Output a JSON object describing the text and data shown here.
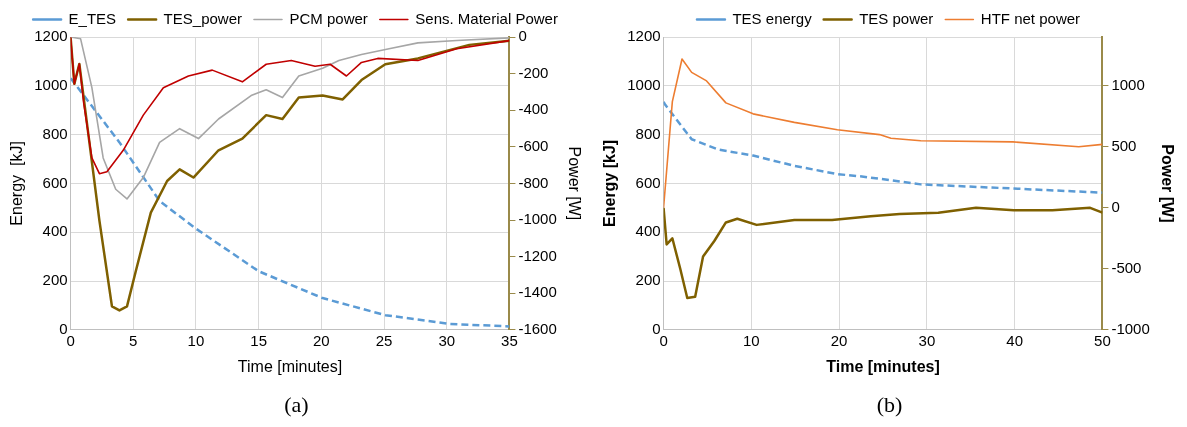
{
  "chart_data": [
    {
      "type": "line",
      "xlabel": "Time [minutes]",
      "ylabel": "Energy  [kJ]",
      "y2label": "Power [W]",
      "xlim": [
        0,
        35
      ],
      "xticks": [
        0,
        5,
        10,
        15,
        20,
        25,
        30,
        35
      ],
      "ylim": [
        0,
        1200
      ],
      "yticks": [
        0,
        200,
        400,
        600,
        800,
        1000,
        1200
      ],
      "y2lim": [
        -1600,
        0
      ],
      "y2ticks": [
        -1600,
        -1400,
        -1200,
        -1000,
        -800,
        -600,
        -400,
        -200,
        0
      ],
      "grid": true,
      "legend": "top",
      "marker": "none",
      "annotations": [
        "(a)"
      ],
      "series": [
        {
          "name": "E_TES",
          "color": "#5b9bd5",
          "line_style": "dashed",
          "x": [
            0,
            0.1,
            3.9,
            7.1,
            9.9,
            15,
            20.1,
            25.1,
            30.2,
            35
          ],
          "values": [
            1030,
            1025,
            768,
            528,
            418,
            240,
            130,
            60,
            24,
            14
          ]
        },
        {
          "name": "TES_power",
          "color": "#7f6000",
          "axis": "y2",
          "x": [
            0,
            0.3,
            0.7,
            2.3,
            3.3,
            3.9,
            4.5,
            5.2,
            6.4,
            7.7,
            8.7,
            9.8,
            11.8,
            13.7,
            15.6,
            16.9,
            18.2,
            20.1,
            21.7,
            23.2,
            25.1,
            27.7,
            31.8,
            35
          ],
          "values": [
            0,
            -256,
            -147,
            -1003,
            -1472,
            -1494,
            -1472,
            -1280,
            -960,
            -787,
            -723,
            -768,
            -619,
            -555,
            -427,
            -448,
            -331,
            -320,
            -341,
            -235,
            -149,
            -117,
            -43,
            -20
          ]
        },
        {
          "name": "PCM power",
          "color": "#a6a6a6",
          "axis": "y2",
          "x": [
            0,
            0.8,
            1.7,
            2.6,
            3.6,
            4.5,
            5.8,
            7.1,
            8.7,
            10.2,
            11.8,
            14.4,
            15.6,
            16.9,
            18.2,
            20.1,
            21.4,
            23.2,
            25.4,
            27.7,
            30.8,
            35
          ],
          "values": [
            0,
            -10,
            -277,
            -661,
            -832,
            -885,
            -768,
            -576,
            -501,
            -555,
            -448,
            -320,
            -288,
            -331,
            -213,
            -171,
            -128,
            -96,
            -64,
            -32,
            -19,
            -5
          ]
        },
        {
          "name": "Sens. Material Power",
          "color": "#c00000",
          "axis": "y2",
          "x": [
            0,
            0.3,
            0.7,
            1.05,
            1.7,
            2.3,
            2.9,
            4.2,
            5.8,
            7.4,
            9.4,
            11.3,
            13.7,
            15.6,
            17.6,
            19.5,
            20.7,
            22,
            23.2,
            24.5,
            27.7,
            30.8,
            35
          ],
          "values": [
            0,
            -256,
            -147,
            -363,
            -661,
            -747,
            -736,
            -619,
            -427,
            -277,
            -213,
            -181,
            -245,
            -149,
            -128,
            -160,
            -149,
            -213,
            -139,
            -117,
            -128,
            -64,
            -20
          ]
        }
      ]
    },
    {
      "type": "line",
      "xlabel": "Time [minutes]",
      "ylabel": "Energy [kJ]",
      "y2label": "Power [W]",
      "xlim": [
        0,
        50
      ],
      "xticks": [
        0,
        10,
        20,
        30,
        40,
        50
      ],
      "ylim": [
        0,
        1200
      ],
      "yticks": [
        0,
        200,
        400,
        600,
        800,
        1000,
        1200
      ],
      "y2lim": [
        -1000,
        1400
      ],
      "y2ticks": [
        -1000,
        -500,
        0,
        500,
        1000
      ],
      "grid": true,
      "legend": "top",
      "marker": "none",
      "annotations": [
        "(b)"
      ],
      "series": [
        {
          "name": "TES energy",
          "color": "#5b9bd5",
          "line_style": "dashed",
          "x": [
            0,
            0.13,
            3.2,
            6.2,
            10.2,
            14.9,
            19.8,
            22.4,
            25.9,
            29.3,
            39.8,
            50
          ],
          "values": [
            935,
            925,
            781,
            739,
            714,
            672,
            638,
            629,
            613,
            596,
            579,
            562
          ]
        },
        {
          "name": "TES power",
          "color": "#7f6000",
          "axis": "y2",
          "x": [
            0,
            0.35,
            1,
            1.9,
            2.7,
            3.6,
            4.5,
            5.8,
            7.1,
            8.4,
            10.6,
            14.9,
            19.2,
            23.6,
            26.9,
            31.3,
            35.6,
            39.9,
            44.3,
            48.6,
            50
          ],
          "values": [
            0,
            -300,
            -250,
            -500,
            -740,
            -730,
            -400,
            -270,
            -120,
            -90,
            -140,
            -100,
            -100,
            -70,
            -50,
            -40,
            0,
            -20,
            -20,
            0,
            -40
          ]
        },
        {
          "name": "HTF net power",
          "color": "#ed7d31",
          "axis": "y2",
          "x": [
            0,
            1,
            2.1,
            3.2,
            4.9,
            7.1,
            10.2,
            14.9,
            19.8,
            24.6,
            25.9,
            29.3,
            39.8,
            47.3,
            50
          ],
          "values": [
            0,
            870,
            1220,
            1110,
            1040,
            860,
            770,
            700,
            640,
            600,
            570,
            550,
            540,
            500,
            520
          ]
        }
      ]
    }
  ]
}
